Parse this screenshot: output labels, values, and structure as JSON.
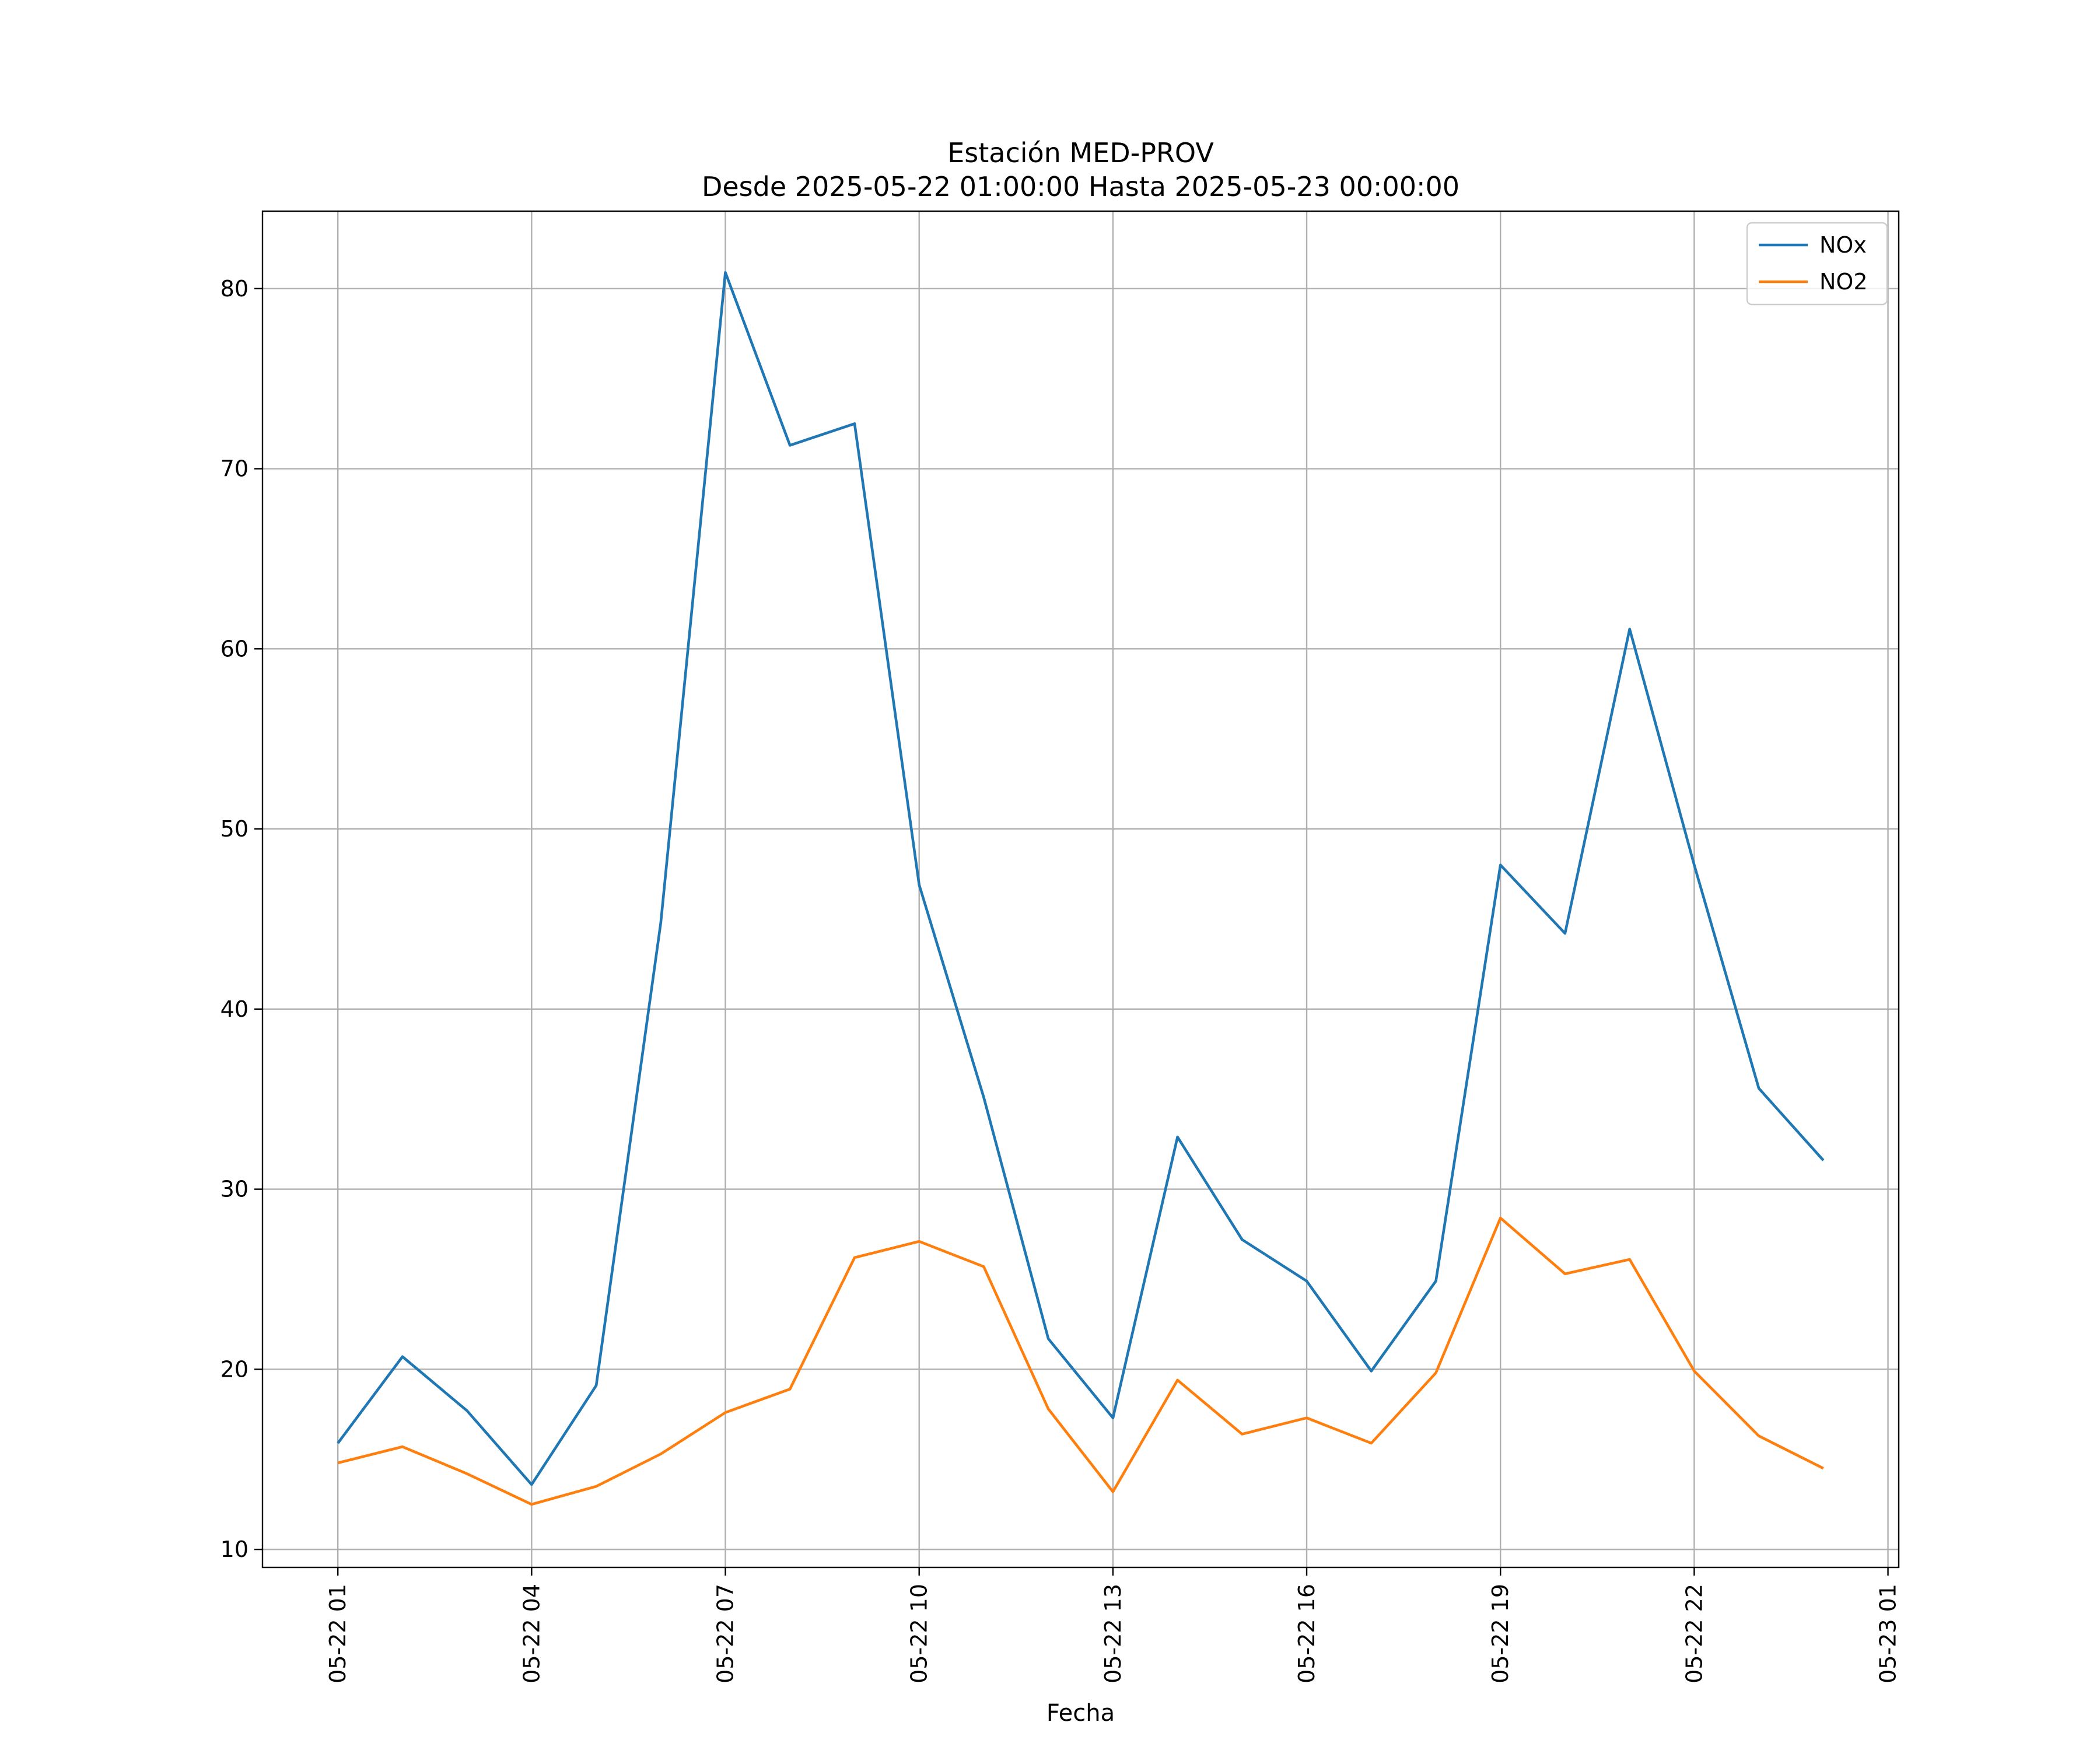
{
  "chart_data": {
    "type": "line",
    "title": "Estación MED-PROV",
    "subtitle": "Desde 2025-05-22 01:00:00 Hasta 2025-05-23 00:00:00",
    "xlabel": "Fecha",
    "ylabel": "",
    "x": [
      "2025-05-22 01:00",
      "2025-05-22 02:00",
      "2025-05-22 03:00",
      "2025-05-22 04:00",
      "2025-05-22 05:00",
      "2025-05-22 06:00",
      "2025-05-22 07:00",
      "2025-05-22 08:00",
      "2025-05-22 09:00",
      "2025-05-22 10:00",
      "2025-05-22 11:00",
      "2025-05-22 12:00",
      "2025-05-22 13:00",
      "2025-05-22 14:00",
      "2025-05-22 15:00",
      "2025-05-22 16:00",
      "2025-05-22 17:00",
      "2025-05-22 18:00",
      "2025-05-22 19:00",
      "2025-05-22 20:00",
      "2025-05-22 21:00",
      "2025-05-22 22:00",
      "2025-05-22 23:00",
      "2025-05-23 00:00"
    ],
    "x_ticks": [
      "05-22 01",
      "05-22 04",
      "05-22 07",
      "05-22 10",
      "05-22 13",
      "05-22 16",
      "05-22 19",
      "05-22 22",
      "05-23 01"
    ],
    "x_tick_values": [
      "2025-05-22 01:00",
      "2025-05-22 04:00",
      "2025-05-22 07:00",
      "2025-05-22 10:00",
      "2025-05-22 13:00",
      "2025-05-22 16:00",
      "2025-05-22 19:00",
      "2025-05-22 22:00",
      "2025-05-23 01:00"
    ],
    "xlim": [
      "2025-05-21 23:50",
      "2025-05-23 01:10"
    ],
    "y_ticks": [
      10,
      20,
      30,
      40,
      50,
      60,
      70,
      80
    ],
    "ylim": [
      9.0,
      84.3
    ],
    "grid": true,
    "legend_position": "top-right",
    "series": [
      {
        "name": "NOx",
        "color": "#1f77b4",
        "values": [
          15.9,
          20.7,
          17.7,
          13.6,
          19.1,
          44.8,
          80.9,
          71.3,
          72.5,
          46.9,
          35.1,
          21.7,
          17.3,
          32.9,
          27.2,
          24.9,
          19.9,
          24.9,
          48.0,
          44.2,
          61.1,
          48.0,
          35.6,
          31.6
        ]
      },
      {
        "name": "NO2",
        "color": "#ff7f0e",
        "values": [
          14.8,
          15.7,
          14.2,
          12.5,
          13.5,
          15.3,
          17.6,
          18.9,
          26.2,
          27.1,
          25.7,
          17.8,
          13.2,
          19.4,
          16.4,
          17.3,
          15.9,
          19.8,
          28.4,
          25.3,
          26.1,
          19.9,
          16.3,
          14.5
        ]
      }
    ]
  }
}
